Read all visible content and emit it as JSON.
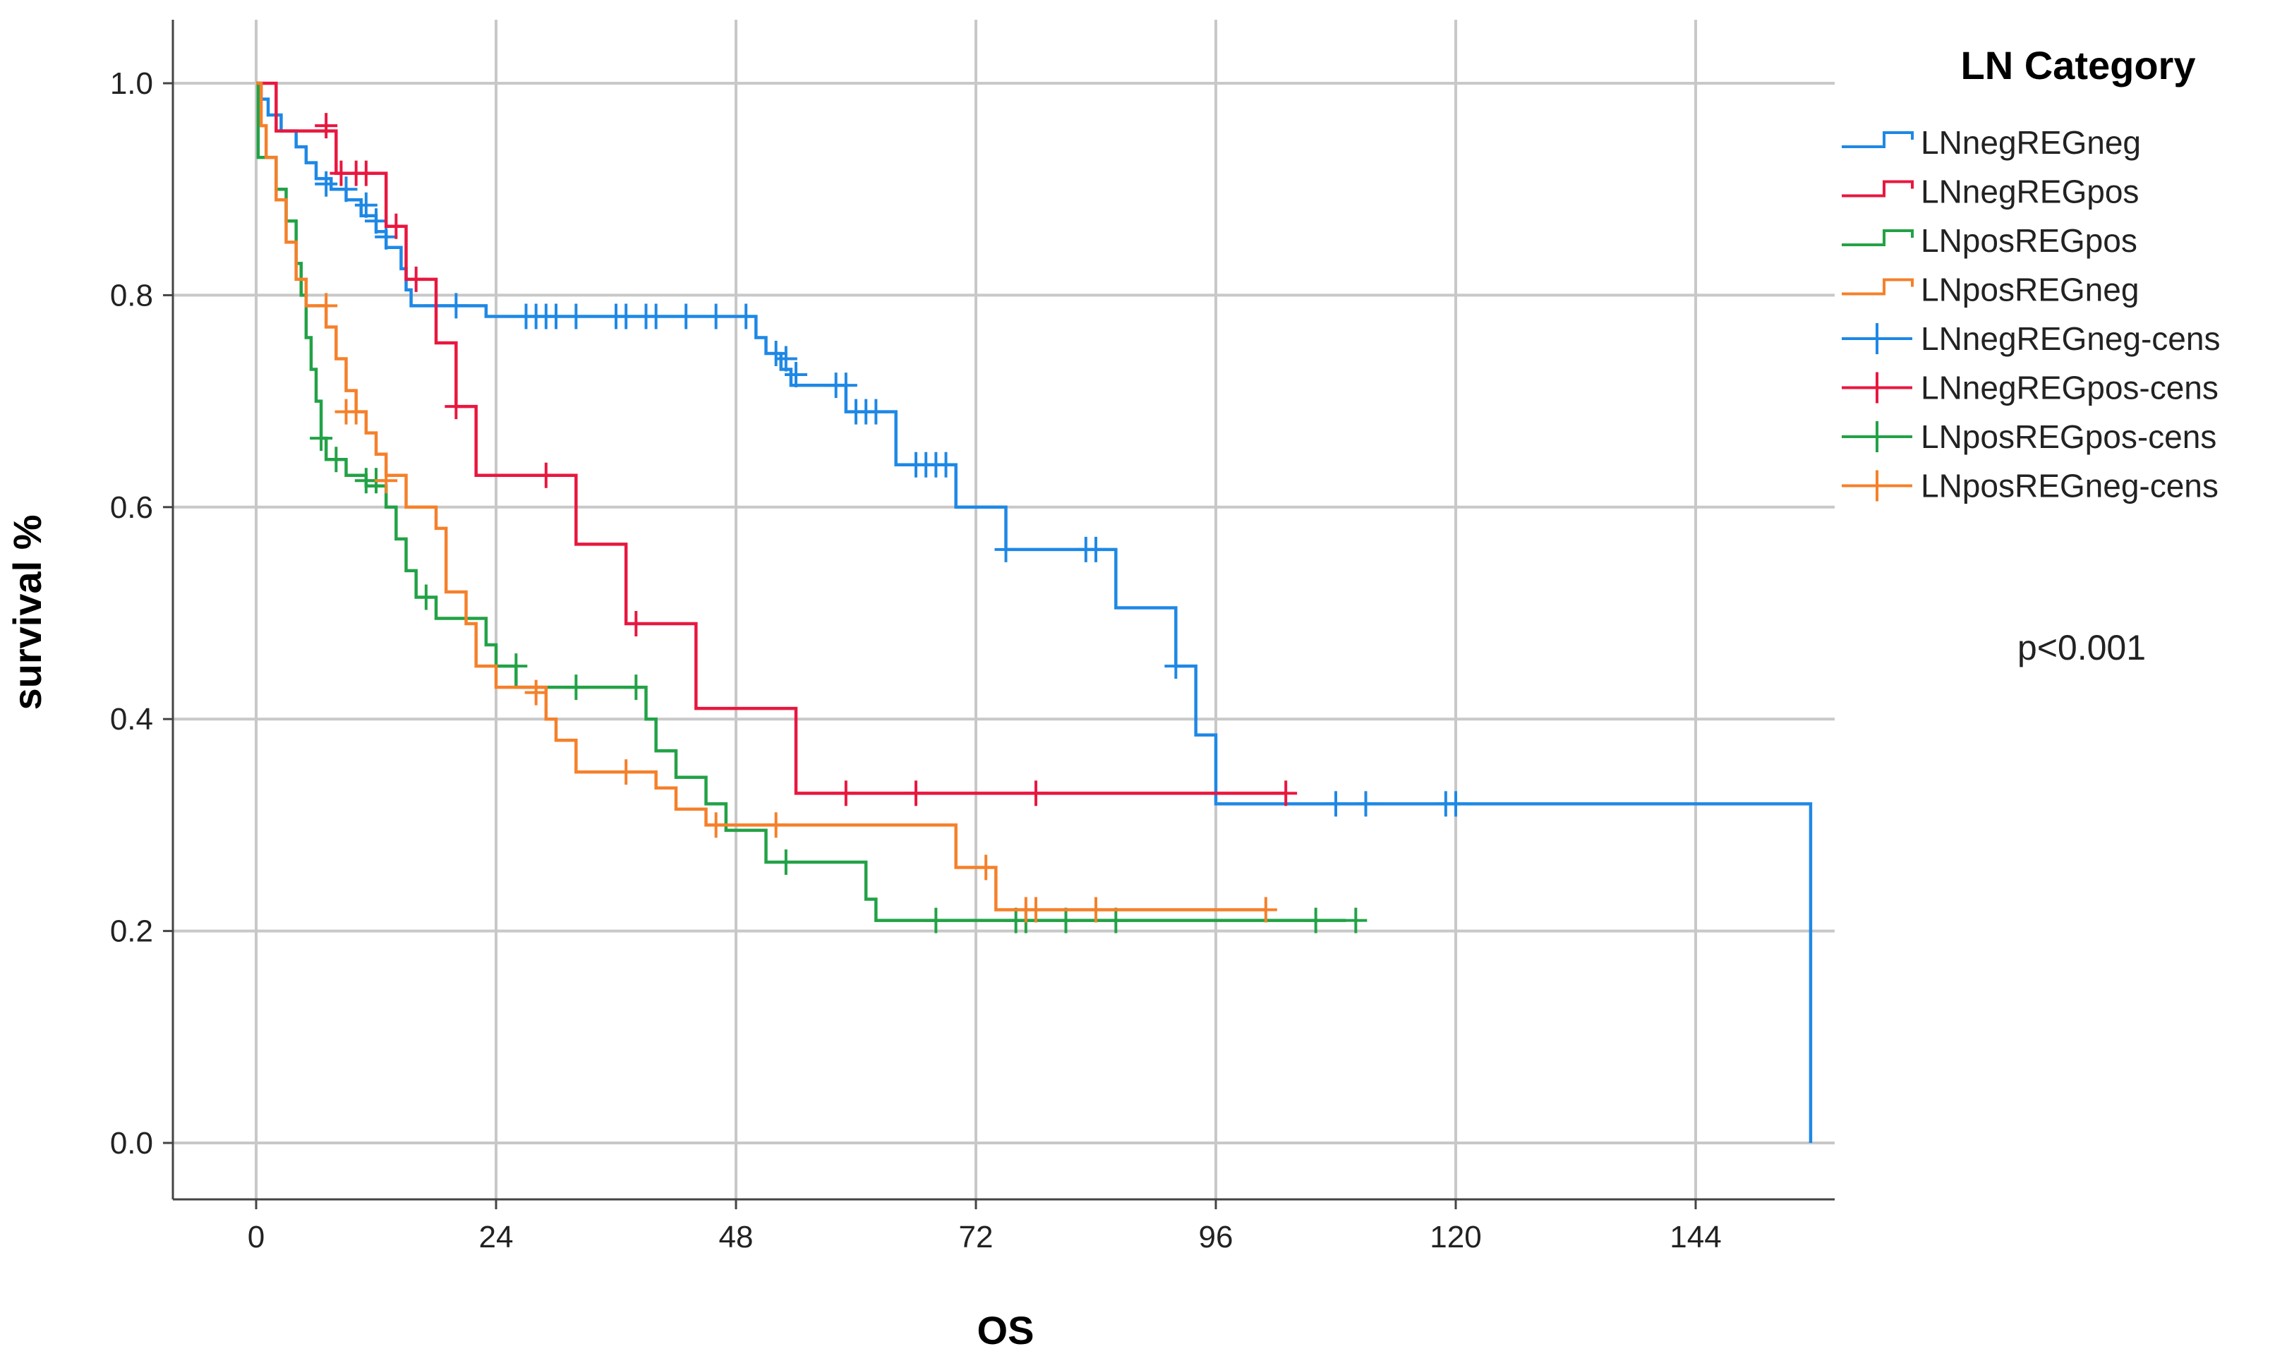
{
  "chart_data": {
    "type": "line",
    "subtype": "kaplan-meier",
    "title": "",
    "xlabel": "OS",
    "ylabel": "survival %",
    "xlim": [
      0,
      156
    ],
    "ylim": [
      0.0,
      1.0
    ],
    "x_ticks": [
      0,
      24,
      48,
      72,
      96,
      120,
      144
    ],
    "y_ticks": [
      0.0,
      0.2,
      0.4,
      0.6,
      0.8,
      1.0
    ],
    "y_tick_labels": [
      "0.0",
      "0.2",
      "0.4",
      "0.6",
      "0.8",
      "1.0"
    ],
    "grid": true,
    "legend_title": "LN Category",
    "legend_position": "right",
    "annotation": "p<0.001",
    "series": [
      {
        "name": "LNnegREGneg",
        "color": "#1e88e5",
        "steps": [
          [
            0,
            1.0
          ],
          [
            0.5,
            0.985
          ],
          [
            1.2,
            0.97
          ],
          [
            2.5,
            0.955
          ],
          [
            4,
            0.94
          ],
          [
            5,
            0.925
          ],
          [
            6,
            0.91
          ],
          [
            7.5,
            0.9
          ],
          [
            9,
            0.89
          ],
          [
            10.5,
            0.875
          ],
          [
            12,
            0.86
          ],
          [
            13,
            0.845
          ],
          [
            14.5,
            0.825
          ],
          [
            15,
            0.805
          ],
          [
            15.5,
            0.79
          ],
          [
            23,
            0.78
          ],
          [
            50,
            0.76
          ],
          [
            51,
            0.745
          ],
          [
            52.5,
            0.73
          ],
          [
            53.5,
            0.715
          ],
          [
            59,
            0.69
          ],
          [
            64,
            0.64
          ],
          [
            70,
            0.6
          ],
          [
            75,
            0.56
          ],
          [
            86,
            0.505
          ],
          [
            92,
            0.45
          ],
          [
            94,
            0.385
          ],
          [
            96,
            0.32
          ],
          [
            155.5,
            0.32
          ],
          [
            155.5,
            0.0
          ]
        ],
        "censored": [
          [
            7,
            0.905
          ],
          [
            9,
            0.9
          ],
          [
            11,
            0.885
          ],
          [
            12,
            0.87
          ],
          [
            13,
            0.855
          ],
          [
            18,
            0.79
          ],
          [
            20,
            0.79
          ],
          [
            27,
            0.78
          ],
          [
            28,
            0.78
          ],
          [
            29,
            0.78
          ],
          [
            30,
            0.78
          ],
          [
            32,
            0.78
          ],
          [
            36,
            0.78
          ],
          [
            37,
            0.78
          ],
          [
            39,
            0.78
          ],
          [
            40,
            0.78
          ],
          [
            43,
            0.78
          ],
          [
            46,
            0.78
          ],
          [
            49,
            0.78
          ],
          [
            52,
            0.745
          ],
          [
            53,
            0.74
          ],
          [
            54,
            0.725
          ],
          [
            58,
            0.715
          ],
          [
            59,
            0.715
          ],
          [
            60,
            0.69
          ],
          [
            61,
            0.69
          ],
          [
            62,
            0.69
          ],
          [
            66,
            0.64
          ],
          [
            67,
            0.64
          ],
          [
            68,
            0.64
          ],
          [
            69,
            0.64
          ],
          [
            75,
            0.56
          ],
          [
            83,
            0.56
          ],
          [
            84,
            0.56
          ],
          [
            92,
            0.45
          ],
          [
            108,
            0.32
          ],
          [
            111,
            0.32
          ],
          [
            119,
            0.32
          ],
          [
            120,
            0.32
          ]
        ]
      },
      {
        "name": "LNnegREGpos",
        "color": "#e8173f",
        "steps": [
          [
            0,
            1.0
          ],
          [
            2,
            0.955
          ],
          [
            8,
            0.915
          ],
          [
            13,
            0.865
          ],
          [
            15,
            0.815
          ],
          [
            18,
            0.755
          ],
          [
            20,
            0.695
          ],
          [
            22,
            0.63
          ],
          [
            32,
            0.565
          ],
          [
            37,
            0.49
          ],
          [
            44,
            0.41
          ],
          [
            54,
            0.33
          ],
          [
            103,
            0.33
          ]
        ],
        "censored": [
          [
            7,
            0.96
          ],
          [
            8.5,
            0.915
          ],
          [
            10,
            0.915
          ],
          [
            11,
            0.915
          ],
          [
            14,
            0.865
          ],
          [
            16,
            0.815
          ],
          [
            20,
            0.695
          ],
          [
            29,
            0.63
          ],
          [
            38,
            0.49
          ],
          [
            59,
            0.33
          ],
          [
            66,
            0.33
          ],
          [
            78,
            0.33
          ],
          [
            103,
            0.33
          ]
        ]
      },
      {
        "name": "LNposREGpos",
        "color": "#22a246",
        "steps": [
          [
            0,
            1.0
          ],
          [
            0.2,
            0.93
          ],
          [
            2,
            0.9
          ],
          [
            3,
            0.87
          ],
          [
            4,
            0.83
          ],
          [
            4.5,
            0.8
          ],
          [
            5,
            0.76
          ],
          [
            5.5,
            0.73
          ],
          [
            6,
            0.7
          ],
          [
            6.5,
            0.665
          ],
          [
            7,
            0.645
          ],
          [
            9,
            0.63
          ],
          [
            11,
            0.62
          ],
          [
            13,
            0.6
          ],
          [
            14,
            0.57
          ],
          [
            15,
            0.54
          ],
          [
            16,
            0.515
          ],
          [
            18,
            0.495
          ],
          [
            23,
            0.47
          ],
          [
            24,
            0.45
          ],
          [
            26,
            0.43
          ],
          [
            39,
            0.4
          ],
          [
            40,
            0.37
          ],
          [
            42,
            0.345
          ],
          [
            45,
            0.32
          ],
          [
            47,
            0.295
          ],
          [
            51,
            0.265
          ],
          [
            61,
            0.23
          ],
          [
            62,
            0.21
          ],
          [
            109,
            0.21
          ]
        ],
        "censored": [
          [
            6.5,
            0.665
          ],
          [
            8,
            0.645
          ],
          [
            11,
            0.625
          ],
          [
            12,
            0.625
          ],
          [
            17,
            0.515
          ],
          [
            26,
            0.45
          ],
          [
            32,
            0.43
          ],
          [
            38,
            0.43
          ],
          [
            53,
            0.265
          ],
          [
            68,
            0.21
          ],
          [
            76,
            0.21
          ],
          [
            77,
            0.21
          ],
          [
            81,
            0.21
          ],
          [
            86,
            0.21
          ],
          [
            106,
            0.21
          ],
          [
            110,
            0.21
          ]
        ]
      },
      {
        "name": "LNposREGneg",
        "color": "#f5802a",
        "steps": [
          [
            0,
            1.0
          ],
          [
            0.5,
            0.96
          ],
          [
            1,
            0.93
          ],
          [
            2,
            0.89
          ],
          [
            3,
            0.85
          ],
          [
            4,
            0.815
          ],
          [
            5,
            0.79
          ],
          [
            7,
            0.77
          ],
          [
            8,
            0.74
          ],
          [
            9,
            0.71
          ],
          [
            10,
            0.69
          ],
          [
            11,
            0.67
          ],
          [
            12,
            0.65
          ],
          [
            13,
            0.63
          ],
          [
            15,
            0.6
          ],
          [
            18,
            0.58
          ],
          [
            19,
            0.52
          ],
          [
            21,
            0.49
          ],
          [
            22,
            0.45
          ],
          [
            24,
            0.43
          ],
          [
            29,
            0.4
          ],
          [
            30,
            0.38
          ],
          [
            32,
            0.35
          ],
          [
            40,
            0.335
          ],
          [
            42,
            0.315
          ],
          [
            45,
            0.3
          ],
          [
            70,
            0.26
          ],
          [
            74,
            0.22
          ],
          [
            101,
            0.22
          ]
        ],
        "censored": [
          [
            7,
            0.79
          ],
          [
            9,
            0.69
          ],
          [
            10,
            0.69
          ],
          [
            13,
            0.625
          ],
          [
            28,
            0.425
          ],
          [
            37,
            0.35
          ],
          [
            46,
            0.3
          ],
          [
            52,
            0.3
          ],
          [
            73,
            0.26
          ],
          [
            77,
            0.22
          ],
          [
            78,
            0.22
          ],
          [
            84,
            0.22
          ],
          [
            101,
            0.22
          ]
        ]
      }
    ],
    "legend": [
      {
        "label": "LNnegREGneg",
        "color": "#1e88e5",
        "kind": "step"
      },
      {
        "label": "LNnegREGpos",
        "color": "#e8173f",
        "kind": "step"
      },
      {
        "label": "LNposREGpos",
        "color": "#22a246",
        "kind": "step"
      },
      {
        "label": "LNposREGneg",
        "color": "#f5802a",
        "kind": "step"
      },
      {
        "label": "LNnegREGneg-cens",
        "color": "#1e88e5",
        "kind": "cross"
      },
      {
        "label": "LNnegREGpos-cens",
        "color": "#e8173f",
        "kind": "cross"
      },
      {
        "label": "LNposREGpos-cens",
        "color": "#22a246",
        "kind": "cross"
      },
      {
        "label": "LNposREGneg-cens",
        "color": "#f5802a",
        "kind": "cross"
      }
    ]
  }
}
